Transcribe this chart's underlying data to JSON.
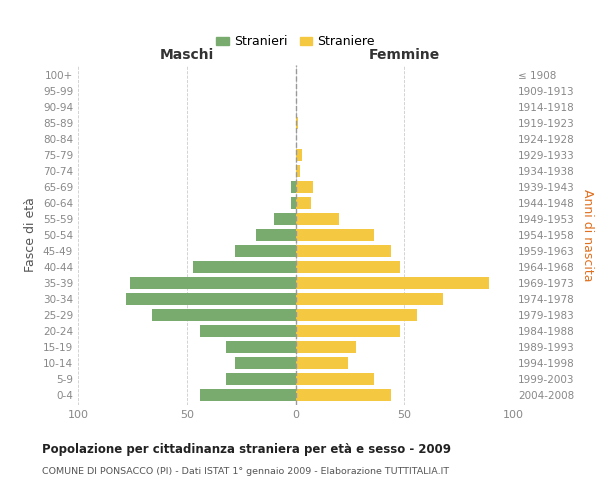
{
  "age_groups": [
    "0-4",
    "5-9",
    "10-14",
    "15-19",
    "20-24",
    "25-29",
    "30-34",
    "35-39",
    "40-44",
    "45-49",
    "50-54",
    "55-59",
    "60-64",
    "65-69",
    "70-74",
    "75-79",
    "80-84",
    "85-89",
    "90-94",
    "95-99",
    "100+"
  ],
  "birth_years": [
    "2004-2008",
    "1999-2003",
    "1994-1998",
    "1989-1993",
    "1984-1988",
    "1979-1983",
    "1974-1978",
    "1969-1973",
    "1964-1968",
    "1959-1963",
    "1954-1958",
    "1949-1953",
    "1944-1948",
    "1939-1943",
    "1934-1938",
    "1929-1933",
    "1924-1928",
    "1919-1923",
    "1914-1918",
    "1909-1913",
    "≤ 1908"
  ],
  "males": [
    44,
    32,
    28,
    32,
    44,
    66,
    78,
    76,
    47,
    28,
    18,
    10,
    2,
    2,
    0,
    0,
    0,
    0,
    0,
    0,
    0
  ],
  "females": [
    44,
    36,
    24,
    28,
    48,
    56,
    68,
    89,
    48,
    44,
    36,
    20,
    7,
    8,
    2,
    3,
    0,
    1,
    0,
    0,
    0
  ],
  "male_color": "#7aab6e",
  "female_color": "#f5c842",
  "title": "Popolazione per cittadinanza straniera per età e sesso - 2009",
  "subtitle": "COMUNE DI PONSACCO (PI) - Dati ISTAT 1° gennaio 2009 - Elaborazione TUTTITALIA.IT",
  "xlabel_left": "Maschi",
  "xlabel_right": "Femmine",
  "ylabel_left": "Fasce di età",
  "ylabel_right": "Anni di nascita",
  "legend_male": "Stranieri",
  "legend_female": "Straniere",
  "xlim": 100,
  "background_color": "#ffffff",
  "grid_color": "#cccccc",
  "bar_height": 0.75,
  "spine_color": "#cccccc"
}
